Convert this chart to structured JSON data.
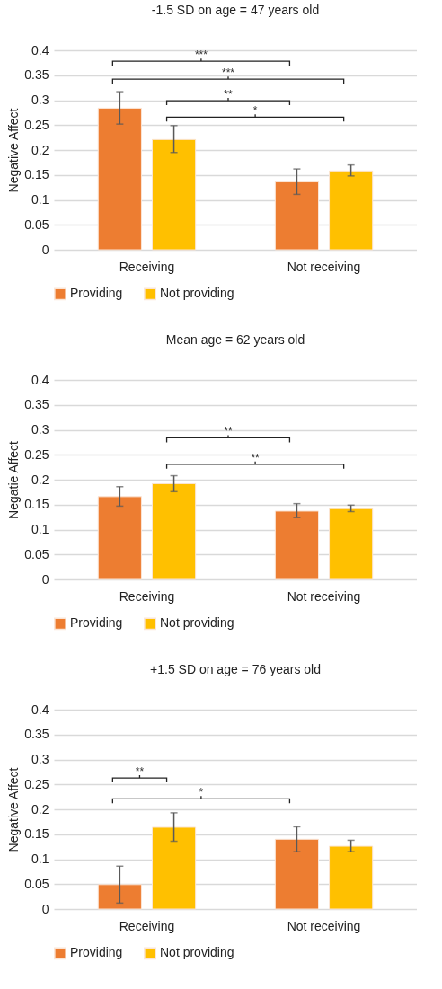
{
  "chart_data": [
    {
      "type": "bar",
      "title": "-1.5 SD on age = 47 years old",
      "ylabel": "Negative Affect",
      "categories": [
        "Receiving",
        "Not receiving"
      ],
      "ylim": [
        0,
        0.4
      ],
      "yticks": [
        0,
        0.05,
        0.1,
        0.15,
        0.2,
        0.25,
        0.3,
        0.35,
        0.4
      ],
      "grid": "y",
      "legend": "bottom",
      "series": [
        {
          "name": "Providing",
          "color": "#ed7d31",
          "values": [
            0.284,
            0.136
          ],
          "errors": [
            [
              0.252,
              0.317
            ],
            [
              0.111,
              0.162
            ]
          ]
        },
        {
          "name": "Not providing",
          "color": "#ffc000",
          "values": [
            0.221,
            0.158
          ],
          "errors": [
            [
              0.195,
              0.249
            ],
            [
              0.148,
              0.17
            ]
          ]
        }
      ],
      "annotations": [
        "***",
        "***",
        "**",
        "*"
      ]
    },
    {
      "type": "bar",
      "title": "Mean age = 62 years old",
      "ylabel": "Negatie Affect",
      "categories": [
        "Receiving",
        "Not receiving"
      ],
      "ylim": [
        0,
        0.4
      ],
      "yticks": [
        0,
        0.05,
        0.1,
        0.15,
        0.2,
        0.25,
        0.3,
        0.35,
        0.4
      ],
      "grid": "y",
      "legend": "bottom",
      "series": [
        {
          "name": "Providing",
          "color": "#ed7d31",
          "values": [
            0.166,
            0.137
          ],
          "errors": [
            [
              0.147,
              0.186
            ],
            [
              0.124,
              0.152
            ]
          ]
        },
        {
          "name": "Not providing",
          "color": "#ffc000",
          "values": [
            0.192,
            0.142
          ],
          "errors": [
            [
              0.176,
              0.208
            ],
            [
              0.136,
              0.149
            ]
          ]
        }
      ],
      "annotations": [
        "**",
        "**"
      ]
    },
    {
      "type": "bar",
      "title": "+1.5 SD on age = 76 years old",
      "ylabel": "Negative Affect",
      "categories": [
        "Receiving",
        "Not receiving"
      ],
      "ylim": [
        0,
        0.4
      ],
      "yticks": [
        0,
        0.05,
        0.1,
        0.15,
        0.2,
        0.25,
        0.3,
        0.35,
        0.4
      ],
      "grid": "y",
      "legend": "bottom",
      "series": [
        {
          "name": "Providing",
          "color": "#ed7d31",
          "values": [
            0.049,
            0.14
          ],
          "errors": [
            [
              0.012,
              0.086
            ],
            [
              0.115,
              0.165
            ]
          ]
        },
        {
          "name": "Not providing",
          "color": "#ffc000",
          "values": [
            0.164,
            0.126
          ],
          "errors": [
            [
              0.136,
              0.193
            ],
            [
              0.115,
              0.138
            ]
          ]
        }
      ],
      "annotations": [
        "**",
        "*"
      ]
    }
  ]
}
